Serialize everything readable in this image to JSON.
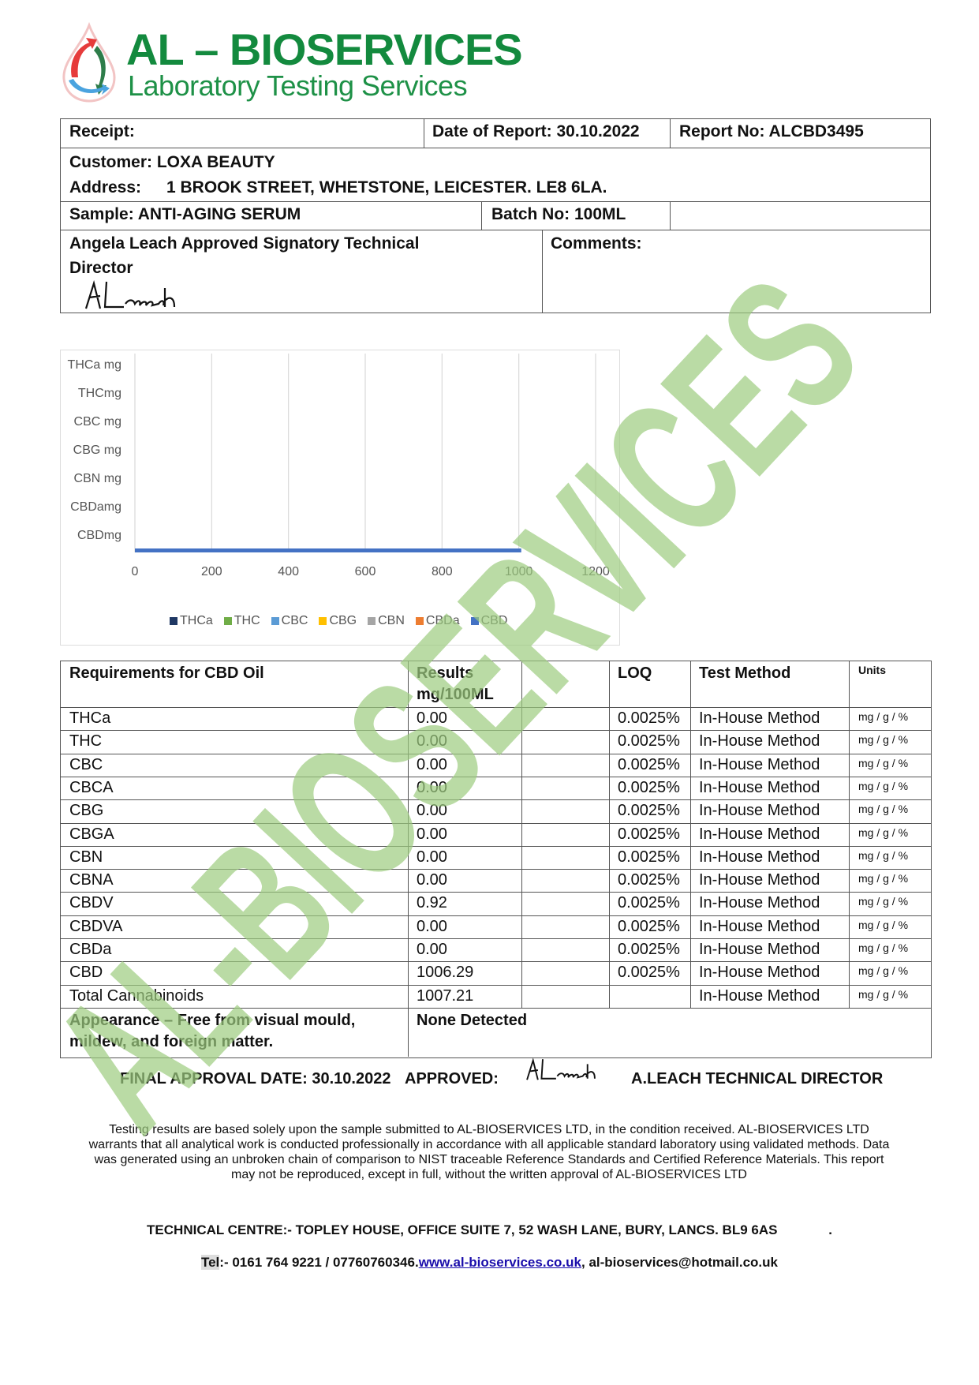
{
  "logo": {
    "title": "AL – BIOSERVICES",
    "subtitle": "Laboratory Testing Services"
  },
  "watermark": "AL-BIOSERVICES",
  "header": {
    "receipt": "Receipt:",
    "date_of_report": "Date of Report: 30.10.2022",
    "report_no": "Report No: ALCBD3495",
    "customer": "Customer: LOXA BEAUTY",
    "address_label": "Address:",
    "address": "1 BROOK STREET, WHETSTONE, LEICESTER. LE8 6LA.",
    "sample": "Sample: ANTI-AGING SERUM",
    "batch_no": "Batch No: 100ML",
    "signatory_line1": "Angela Leach Approved Signatory Technical",
    "signatory_line2": "Director",
    "comments": "Comments:"
  },
  "chart_data": {
    "type": "bar",
    "orientation": "horizontal",
    "categories": [
      "THCa mg",
      "THCmg",
      "CBC mg",
      "CBG mg",
      "CBN mg",
      "CBDamg",
      "CBDmg"
    ],
    "xlim": [
      0,
      1200
    ],
    "xticks": [
      "0",
      "200",
      "400",
      "600",
      "800",
      "1000",
      "1200"
    ],
    "grid": true,
    "legend_position": "bottom",
    "series": [
      {
        "name": "THCa",
        "color": "#1f3864",
        "values": [
          0,
          0,
          0,
          0,
          0,
          0,
          0
        ]
      },
      {
        "name": "THC",
        "color": "#70ad47",
        "values": [
          0,
          0,
          0,
          0,
          0,
          0,
          0
        ]
      },
      {
        "name": "CBC",
        "color": "#5b9bd5",
        "values": [
          0,
          0,
          0,
          0,
          0,
          0,
          0
        ]
      },
      {
        "name": "CBG",
        "color": "#ffc000",
        "values": [
          0,
          0,
          0,
          0,
          0,
          0,
          0
        ]
      },
      {
        "name": "CBN",
        "color": "#a5a5a5",
        "values": [
          0,
          0,
          0,
          0,
          0,
          0,
          0
        ]
      },
      {
        "name": "CBDa",
        "color": "#ed7d31",
        "values": [
          0,
          0,
          0,
          0,
          0,
          0,
          0
        ]
      },
      {
        "name": "CBD",
        "color": "#4472c4",
        "values": [
          0,
          0,
          0,
          0,
          0,
          0,
          1006.29
        ]
      }
    ]
  },
  "results": {
    "headers": {
      "requirement": "Requirements for CBD Oil",
      "results_line1": "Results",
      "results_line2": "mg/100ML",
      "loq": "LOQ",
      "method": "Test Method",
      "units": "Units"
    },
    "rows": [
      {
        "name": "THCa",
        "result": "0.00",
        "loq": "0.0025%",
        "method": "In-House Method",
        "units": "mg / g / %"
      },
      {
        "name": "THC",
        "result": "0.00",
        "loq": "0.0025%",
        "method": "In-House Method",
        "units": "mg / g / %"
      },
      {
        "name": "CBC",
        "result": "0.00",
        "loq": "0.0025%",
        "method": "In-House Method",
        "units": "mg / g / %"
      },
      {
        "name": "CBCA",
        "result": "0.00",
        "loq": "0.0025%",
        "method": "In-House Method",
        "units": "mg / g / %"
      },
      {
        "name": "CBG",
        "result": "0.00",
        "loq": "0.0025%",
        "method": "In-House Method",
        "units": "mg / g / %"
      },
      {
        "name": "CBGA",
        "result": "0.00",
        "loq": "0.0025%",
        "method": "In-House Method",
        "units": "mg / g / %"
      },
      {
        "name": "CBN",
        "result": "0.00",
        "loq": "0.0025%",
        "method": "In-House Method",
        "units": "mg / g / %"
      },
      {
        "name": "CBNA",
        "result": "0.00",
        "loq": "0.0025%",
        "method": "In-House Method",
        "units": "mg / g / %"
      },
      {
        "name": "CBDV",
        "result": "0.92",
        "loq": "0.0025%",
        "method": "In-House Method",
        "units": "mg / g / %"
      },
      {
        "name": "CBDVA",
        "result": "0.00",
        "loq": "0.0025%",
        "method": "In-House Method",
        "units": "mg / g / %"
      },
      {
        "name": "CBDa",
        "result": "0.00",
        "loq": "0.0025%",
        "method": "In-House Method",
        "units": "mg / g / %"
      },
      {
        "name": "CBD",
        "result": "1006.29",
        "loq": "0.0025%",
        "method": "In-House Method",
        "units": "mg / g / %"
      },
      {
        "name": "Total Cannabinoids",
        "result": "1007.21",
        "loq": "",
        "method": "In-House Method",
        "units": "mg / g / %"
      }
    ],
    "appearance_line1": "Appearance – Free from visual mould,",
    "appearance_line2": "mildew, and foreign matter.",
    "appearance_result": "None Detected"
  },
  "approval": {
    "final_date": "FINAL APPROVAL DATE: 30.10.2022",
    "approved": "APPROVED:",
    "signer": "A.LEACH TECHNICAL DIRECTOR"
  },
  "disclaimer": "Testing results are based solely upon the sample submitted to AL-BIOSERVICES LTD, in the condition received. AL-BIOSERVICES LTD warrants that all analytical work is conducted professionally in accordance with all applicable standard laboratory using validated methods. Data was generated using an unbroken chain of comparison to NIST traceable Reference Standards and Certified Reference Materials. This report may not be reproduced, except in full, without the written approval of AL-BIOSERVICES LTD",
  "contact": {
    "technical_centre": "TECHNICAL CENTRE:- TOPLEY HOUSE, OFFICE SUITE 7, 52 WASH LANE, BURY, LANCS. BL9 6AS",
    "trailing_dot": ".",
    "tel_label": "Tel",
    "tel": ":- 0161 764 9221 / 07760760346.",
    "website": "www.al-bioservices.co.uk",
    "separator": ",",
    "email": "al-bioservices@hotmail.co.uk"
  }
}
